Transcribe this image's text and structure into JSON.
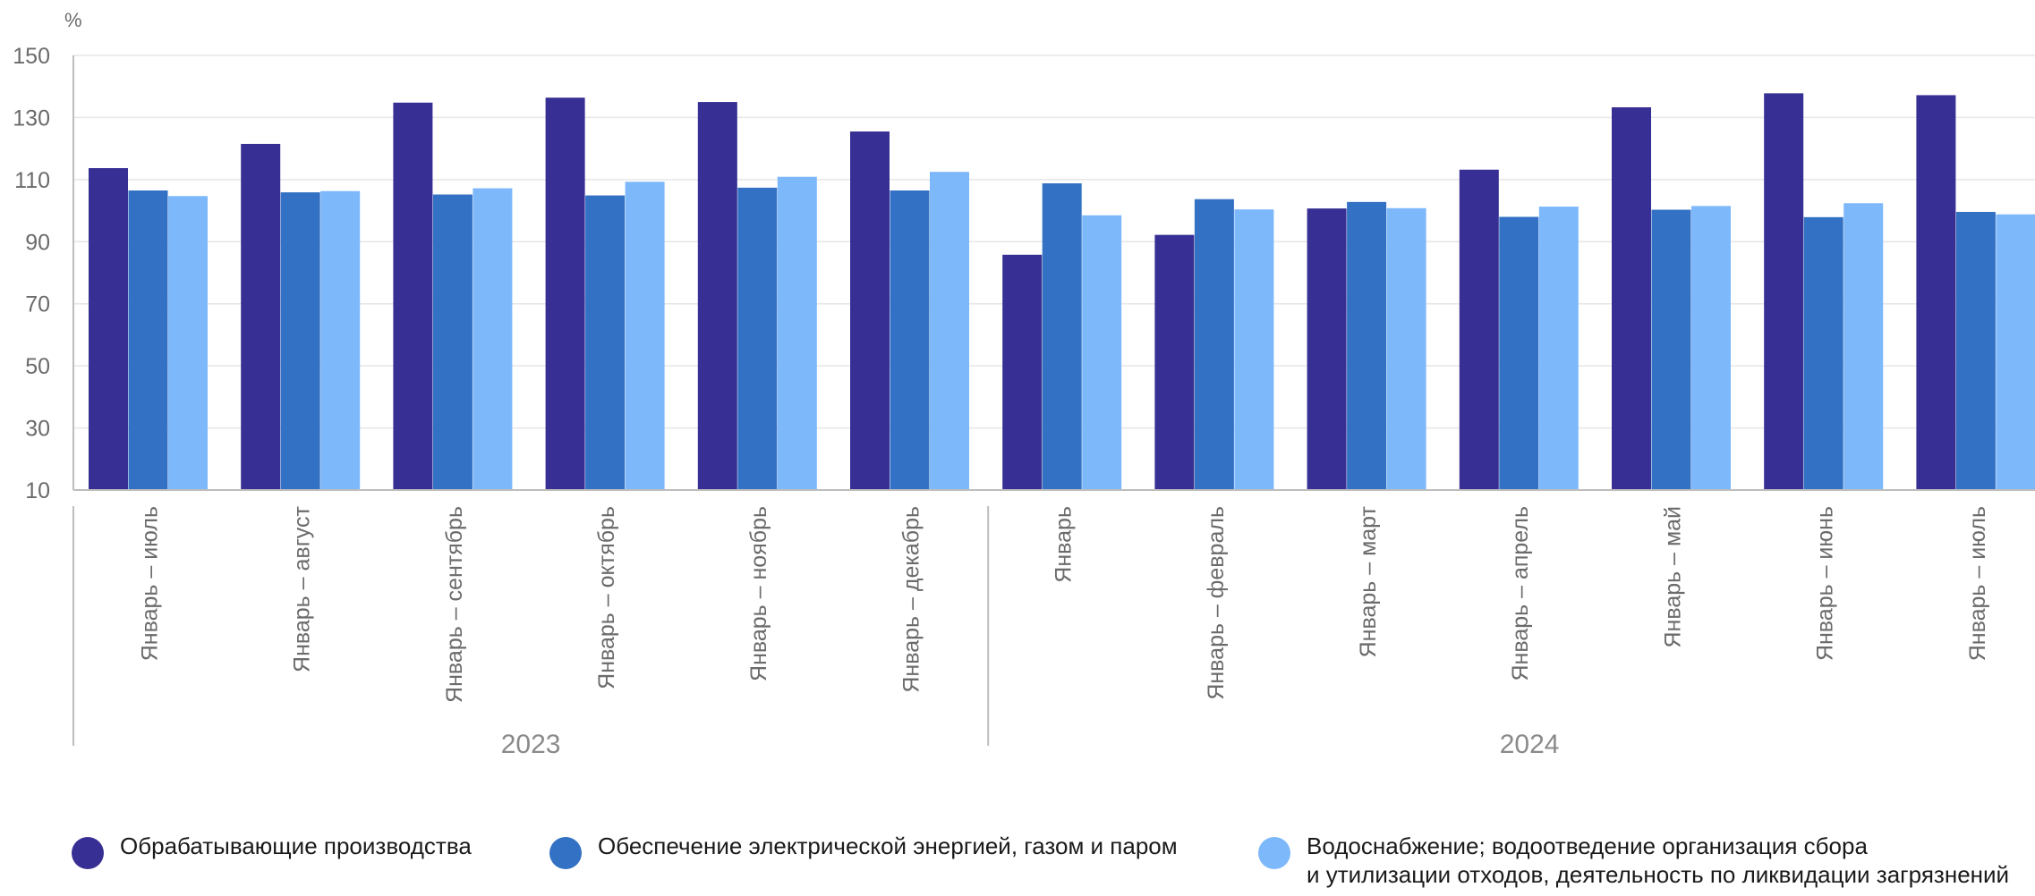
{
  "chart_data": {
    "type": "bar",
    "unit_label": "%",
    "ylim": [
      10,
      150
    ],
    "yticks": [
      10,
      30,
      50,
      70,
      90,
      110,
      130,
      150
    ],
    "grid": true,
    "legend_position": "bottom",
    "categories": [
      "Январь – июль",
      "Январь – август",
      "Январь – сентябрь",
      "Январь – октябрь",
      "Январь – ноябрь",
      "Январь – декабрь",
      "Январь",
      "Январь – февраль",
      "Январь – март",
      "Январь – апрель",
      "Январь – май",
      "Январь – июнь",
      "Январь – июль"
    ],
    "groups": [
      {
        "label": "2023",
        "count": 6
      },
      {
        "label": "2024",
        "count": 7
      }
    ],
    "series": [
      {
        "name": "Обрабатывающие производства",
        "color": "#372f93",
        "values": [
          113.7,
          121.5,
          134.8,
          136.4,
          135.0,
          125.5,
          85.8,
          92.2,
          100.7,
          113.2,
          133.3,
          137.8,
          137.2
        ]
      },
      {
        "name": "Обеспечение электрической энергией, газом и паром",
        "color": "#3371c4",
        "values": [
          106.5,
          105.9,
          105.2,
          104.9,
          107.4,
          106.5,
          108.8,
          103.7,
          102.8,
          98.0,
          100.3,
          97.9,
          99.6
        ]
      },
      {
        "name": "Водоснабжение; водоотведение организация сбора\nи утилизации отходов, деятельность по ликвидации загрязнений",
        "color": "#7db8fb",
        "values": [
          104.7,
          106.3,
          107.2,
          109.3,
          110.9,
          112.5,
          98.5,
          100.4,
          100.8,
          101.3,
          101.5,
          102.4,
          98.8
        ]
      }
    ]
  }
}
